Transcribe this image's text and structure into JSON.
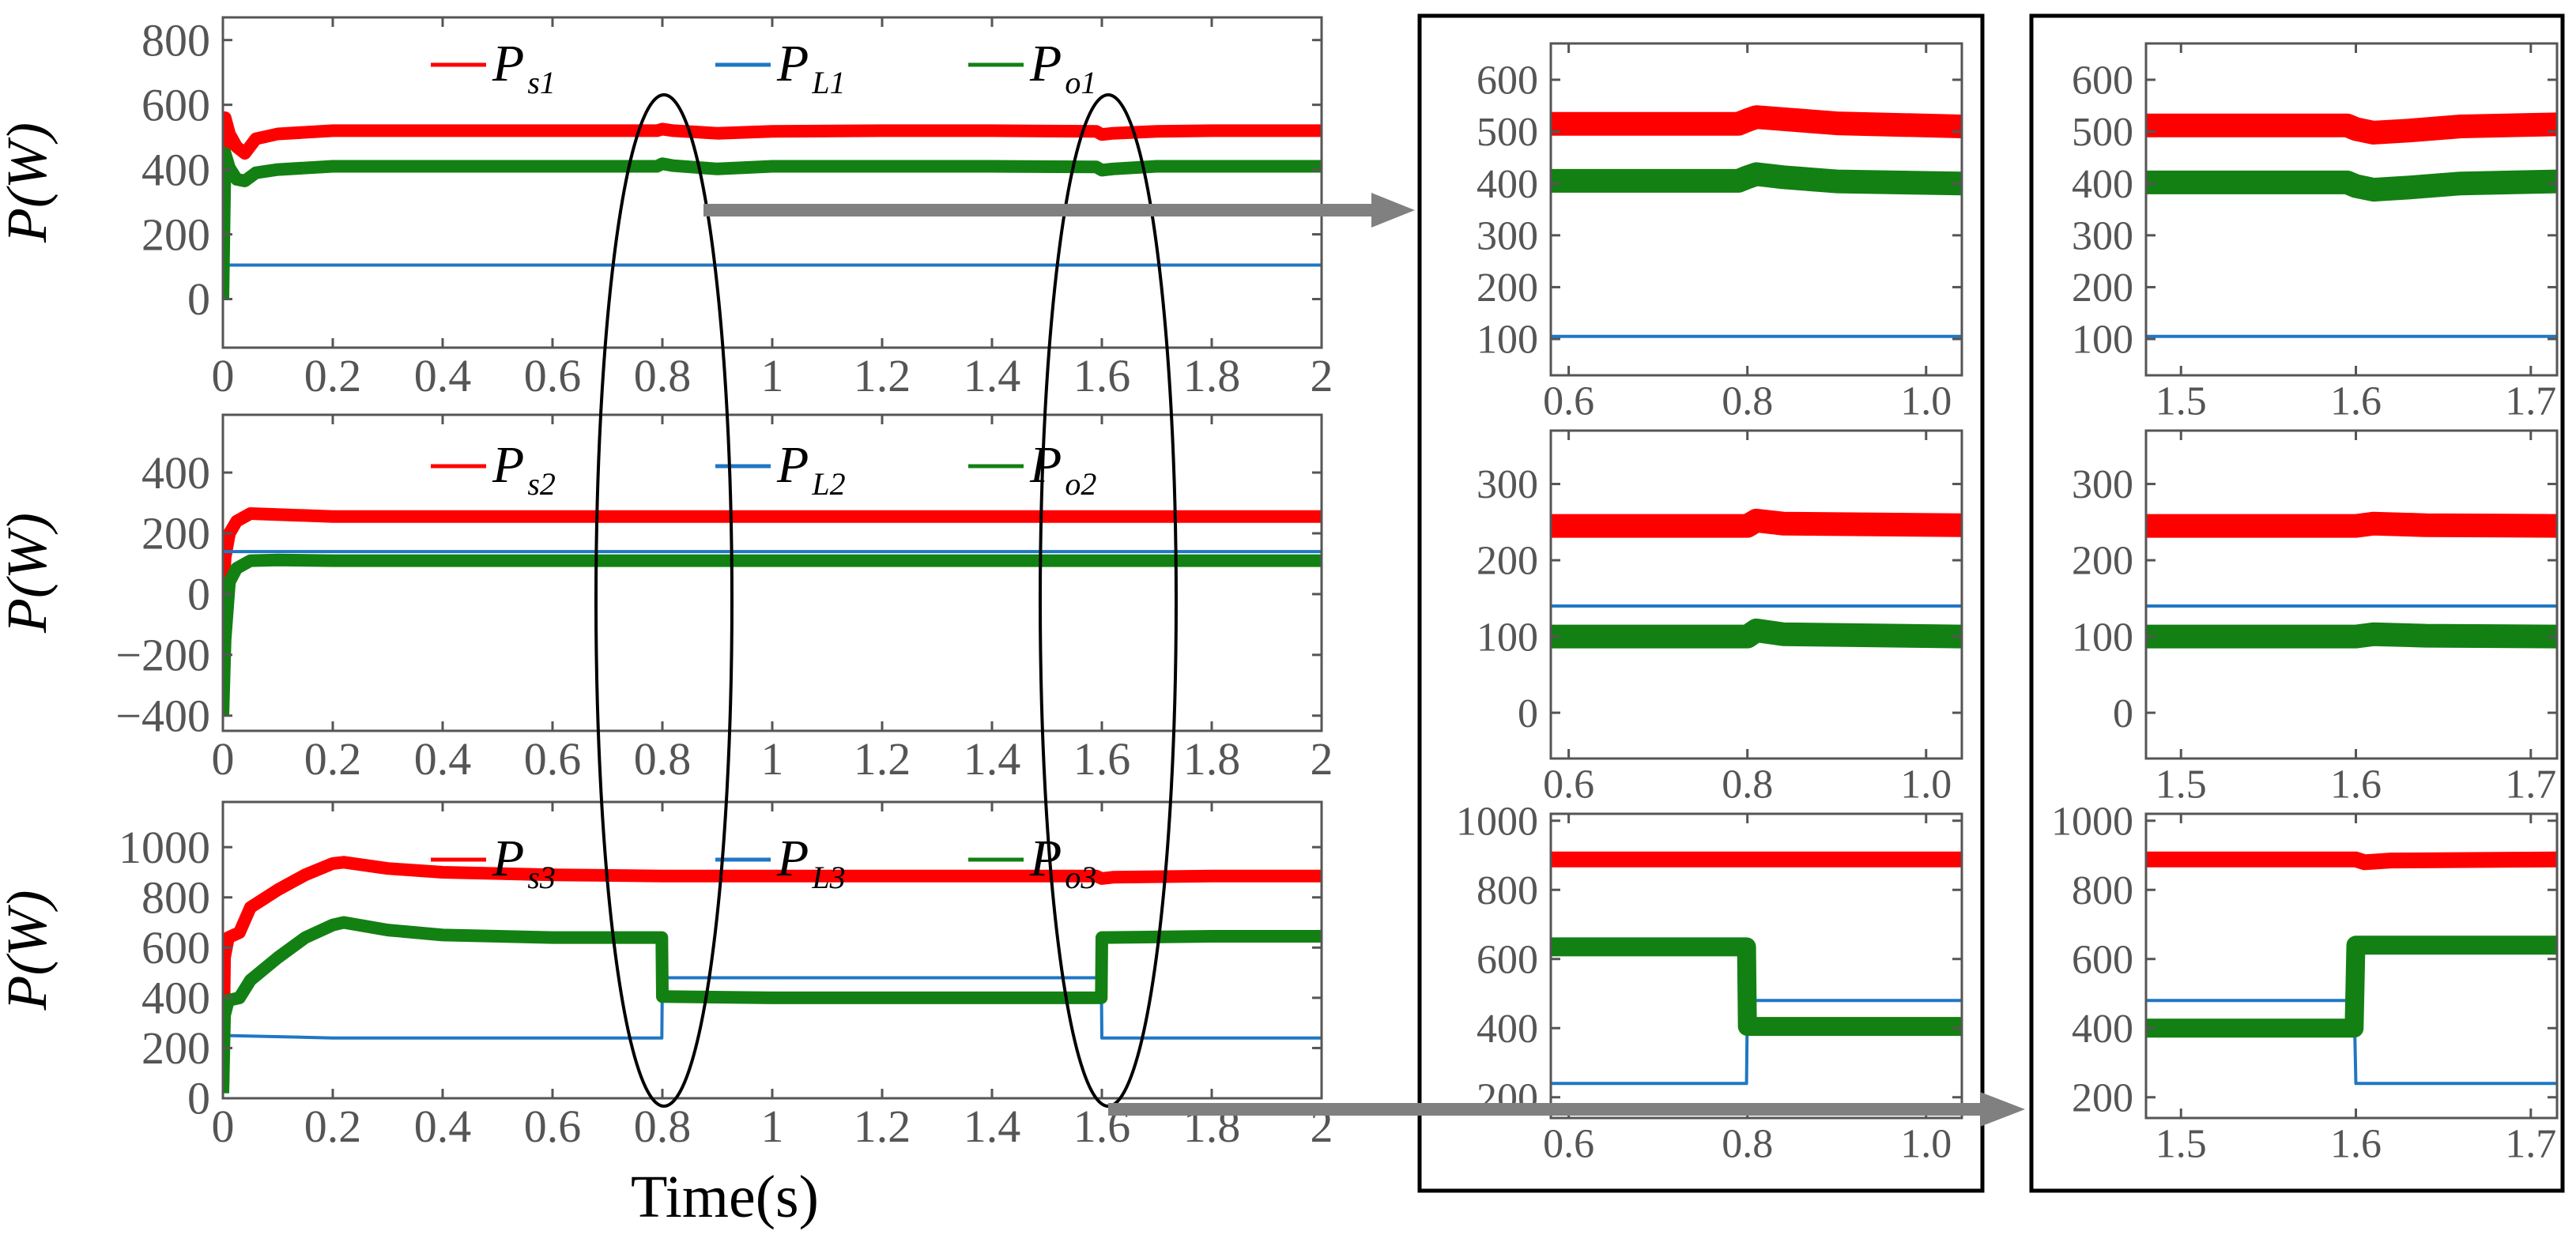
{
  "figure": {
    "xlabel": "Time(s)",
    "ylabel_prefix": "P",
    "ylabel_unit": "(W)",
    "colors": {
      "s": "#ff0000",
      "L": "#1f77c4",
      "o": "#138013",
      "arrow": "#808080",
      "frame": "#000000"
    }
  },
  "chart_data": [
    {
      "id": "main1",
      "type": "line",
      "xlim": [
        0,
        2
      ],
      "ylim": [
        -150,
        870
      ],
      "xticks": [
        0,
        0.2,
        0.4,
        0.6,
        0.8,
        1,
        1.2,
        1.4,
        1.6,
        1.8,
        2
      ],
      "xticklabels": [
        "0",
        "0.2",
        "0.4",
        "0.6",
        "0.8",
        "1",
        "1.2",
        "1.4",
        "1.6",
        "1.8",
        "2"
      ],
      "yticks": [
        0,
        200,
        400,
        600,
        800
      ],
      "yticklabels": [
        "0",
        "200",
        "400",
        "600",
        "800"
      ],
      "ylabel": "P(W)",
      "legend": [
        {
          "key": "s",
          "main": "P",
          "sub": "s1"
        },
        {
          "key": "L",
          "main": "P",
          "sub": "L1"
        },
        {
          "key": "o",
          "main": "P",
          "sub": "o1"
        }
      ],
      "series": [
        {
          "name": "Ps1",
          "key": "s",
          "width": 16,
          "x": [
            0,
            0.004,
            0.012,
            0.025,
            0.04,
            0.06,
            0.1,
            0.2,
            0.4,
            0.6,
            0.79,
            0.8,
            0.82,
            0.9,
            1.0,
            1.2,
            1.4,
            1.59,
            1.6,
            1.62,
            1.7,
            1.8,
            2.0
          ],
          "y": [
            100,
            560,
            510,
            470,
            450,
            495,
            510,
            520,
            520,
            520,
            520,
            525,
            520,
            512,
            518,
            520,
            520,
            518,
            508,
            512,
            518,
            520,
            520
          ]
        },
        {
          "name": "PL1",
          "key": "L",
          "width": 4,
          "x": [
            0,
            0.005,
            2.0
          ],
          "y": [
            100,
            105,
            105
          ]
        },
        {
          "name": "Po1",
          "key": "o",
          "width": 16,
          "x": [
            0,
            0.004,
            0.012,
            0.025,
            0.04,
            0.06,
            0.1,
            0.2,
            0.4,
            0.6,
            0.79,
            0.8,
            0.82,
            0.9,
            1.0,
            1.2,
            1.4,
            1.59,
            1.6,
            1.62,
            1.7,
            1.8,
            2.0
          ],
          "y": [
            0,
            450,
            405,
            370,
            365,
            390,
            400,
            410,
            410,
            410,
            410,
            418,
            412,
            402,
            410,
            410,
            410,
            408,
            398,
            402,
            410,
            410,
            410
          ]
        }
      ]
    },
    {
      "id": "main2",
      "type": "line",
      "xlim": [
        0,
        2
      ],
      "ylim": [
        -450,
        590
      ],
      "xticks": [
        0,
        0.2,
        0.4,
        0.6,
        0.8,
        1,
        1.2,
        1.4,
        1.6,
        1.8,
        2
      ],
      "xticklabels": [
        "0",
        "0.2",
        "0.4",
        "0.6",
        "0.8",
        "1",
        "1.2",
        "1.4",
        "1.6",
        "1.8",
        "2"
      ],
      "yticks": [
        -400,
        -200,
        0,
        200,
        400
      ],
      "yticklabels": [
        "−400",
        "−200",
        "0",
        "200",
        "400"
      ],
      "ylabel": "P(W)",
      "legend": [
        {
          "key": "s",
          "main": "P",
          "sub": "s2"
        },
        {
          "key": "L",
          "main": "P",
          "sub": "L2"
        },
        {
          "key": "o",
          "main": "P",
          "sub": "o2"
        }
      ],
      "series": [
        {
          "name": "Ps2",
          "key": "s",
          "width": 16,
          "x": [
            0,
            0.004,
            0.012,
            0.025,
            0.05,
            0.1,
            0.2,
            0.4,
            0.8,
            1.2,
            1.6,
            2.0
          ],
          "y": [
            -50,
            120,
            200,
            240,
            265,
            262,
            255,
            255,
            255,
            255,
            255,
            255
          ]
        },
        {
          "name": "PL2",
          "key": "L",
          "width": 4,
          "x": [
            0,
            0.005,
            2.0
          ],
          "y": [
            140,
            140,
            140
          ]
        },
        {
          "name": "Po2",
          "key": "o",
          "width": 16,
          "x": [
            0,
            0.004,
            0.012,
            0.025,
            0.05,
            0.1,
            0.2,
            0.4,
            0.8,
            1.2,
            1.6,
            2.0
          ],
          "y": [
            -400,
            -150,
            40,
            85,
            110,
            112,
            110,
            110,
            110,
            110,
            110,
            110
          ]
        }
      ]
    },
    {
      "id": "main3",
      "type": "line",
      "xlim": [
        0,
        2
      ],
      "ylim": [
        0,
        1180
      ],
      "xticks": [
        0,
        0.2,
        0.4,
        0.6,
        0.8,
        1,
        1.2,
        1.4,
        1.6,
        1.8,
        2
      ],
      "xticklabels": [
        "0",
        "0.2",
        "0.4",
        "0.6",
        "0.8",
        "1",
        "1.2",
        "1.4",
        "1.6",
        "1.8",
        "2"
      ],
      "yticks": [
        0,
        200,
        400,
        600,
        800,
        1000
      ],
      "yticklabels": [
        "0",
        "200",
        "400",
        "600",
        "800",
        "1000"
      ],
      "ylabel": "P(W)",
      "legend": [
        {
          "key": "s",
          "main": "P",
          "sub": "s3"
        },
        {
          "key": "L",
          "main": "P",
          "sub": "L3"
        },
        {
          "key": "o",
          "main": "P",
          "sub": "o3"
        }
      ],
      "series": [
        {
          "name": "Ps3",
          "key": "s",
          "width": 16,
          "x": [
            0,
            0.003,
            0.01,
            0.03,
            0.05,
            0.1,
            0.15,
            0.2,
            0.22,
            0.3,
            0.4,
            0.6,
            0.8,
            1.0,
            1.2,
            1.59,
            1.6,
            1.62,
            1.8,
            2.0
          ],
          "y": [
            50,
            560,
            640,
            660,
            760,
            830,
            890,
            935,
            940,
            915,
            900,
            890,
            885,
            885,
            885,
            885,
            875,
            880,
            885,
            885
          ]
        },
        {
          "name": "PL3",
          "key": "L",
          "width": 4,
          "x": [
            0,
            0.005,
            0.2,
            0.4,
            0.799,
            0.8,
            1.599,
            1.6,
            2.0
          ],
          "y": [
            240,
            250,
            240,
            240,
            240,
            480,
            480,
            240,
            240
          ]
        },
        {
          "name": "Po3",
          "key": "o",
          "width": 16,
          "x": [
            0,
            0.003,
            0.01,
            0.03,
            0.05,
            0.1,
            0.15,
            0.2,
            0.22,
            0.3,
            0.4,
            0.6,
            0.799,
            0.8,
            1.0,
            1.2,
            1.599,
            1.6,
            1.8,
            2.0
          ],
          "y": [
            20,
            330,
            390,
            400,
            470,
            560,
            640,
            690,
            700,
            670,
            650,
            640,
            640,
            405,
            400,
            400,
            400,
            640,
            645,
            645
          ]
        }
      ]
    },
    {
      "id": "zoomA1",
      "type": "line",
      "xlim": [
        0.58,
        1.04
      ],
      "ylim": [
        30,
        670
      ],
      "xticks": [
        0.6,
        0.8,
        1.0
      ],
      "xticklabels": [
        "0.6",
        "0.8",
        "1.0"
      ],
      "yticks": [
        100,
        200,
        300,
        400,
        500,
        600
      ],
      "yticklabels": [
        "100",
        "200",
        "300",
        "400",
        "500",
        "600"
      ],
      "series": [
        {
          "name": "Ps1",
          "key": "s",
          "width": 30,
          "x": [
            0.58,
            0.79,
            0.8,
            0.81,
            0.84,
            0.9,
            1.04
          ],
          "y": [
            515,
            515,
            522,
            528,
            524,
            516,
            510
          ]
        },
        {
          "name": "PL1",
          "key": "L",
          "width": 4,
          "x": [
            0.58,
            1.04
          ],
          "y": [
            105,
            105
          ]
        },
        {
          "name": "Po1",
          "key": "o",
          "width": 30,
          "x": [
            0.58,
            0.79,
            0.8,
            0.81,
            0.84,
            0.9,
            1.04
          ],
          "y": [
            405,
            405,
            412,
            418,
            412,
            404,
            400
          ]
        }
      ]
    },
    {
      "id": "zoomB1",
      "type": "line",
      "xlim": [
        1.48,
        1.715
      ],
      "ylim": [
        30,
        670
      ],
      "xticks": [
        1.5,
        1.6,
        1.7
      ],
      "xticklabels": [
        "1.5",
        "1.6",
        "1.7"
      ],
      "yticks": [
        100,
        200,
        300,
        400,
        500,
        600
      ],
      "yticklabels": [
        "100",
        "200",
        "300",
        "400",
        "500",
        "600"
      ],
      "series": [
        {
          "name": "Ps1",
          "key": "s",
          "width": 30,
          "x": [
            1.48,
            1.595,
            1.6,
            1.61,
            1.63,
            1.66,
            1.715
          ],
          "y": [
            512,
            512,
            505,
            498,
            502,
            510,
            514
          ]
        },
        {
          "name": "PL1",
          "key": "L",
          "width": 4,
          "x": [
            1.48,
            1.715
          ],
          "y": [
            105,
            105
          ]
        },
        {
          "name": "Po1",
          "key": "o",
          "width": 30,
          "x": [
            1.48,
            1.595,
            1.6,
            1.61,
            1.63,
            1.66,
            1.715
          ],
          "y": [
            402,
            402,
            395,
            388,
            392,
            400,
            404
          ]
        }
      ]
    },
    {
      "id": "zoomA2",
      "type": "line",
      "xlim": [
        0.58,
        1.04
      ],
      "ylim": [
        -60,
        370
      ],
      "xticks": [
        0.6,
        0.8,
        1.0
      ],
      "xticklabels": [
        "0.6",
        "0.8",
        "1.0"
      ],
      "yticks": [
        0,
        100,
        200,
        300
      ],
      "yticklabels": [
        "0",
        "100",
        "200",
        "300"
      ],
      "series": [
        {
          "name": "Ps2",
          "key": "s",
          "width": 30,
          "x": [
            0.58,
            0.8,
            0.81,
            0.84,
            1.04
          ],
          "y": [
            245,
            245,
            252,
            248,
            246
          ]
        },
        {
          "name": "PL2",
          "key": "L",
          "width": 4,
          "x": [
            0.58,
            1.04
          ],
          "y": [
            140,
            140
          ]
        },
        {
          "name": "Po2",
          "key": "o",
          "width": 30,
          "x": [
            0.58,
            0.8,
            0.81,
            0.84,
            1.04
          ],
          "y": [
            100,
            100,
            108,
            103,
            100
          ]
        }
      ]
    },
    {
      "id": "zoomB2",
      "type": "line",
      "xlim": [
        1.48,
        1.715
      ],
      "ylim": [
        -60,
        370
      ],
      "xticks": [
        1.5,
        1.6,
        1.7
      ],
      "xticklabels": [
        "1.5",
        "1.6",
        "1.7"
      ],
      "yticks": [
        0,
        100,
        200,
        300
      ],
      "yticklabels": [
        "0",
        "100",
        "200",
        "300"
      ],
      "series": [
        {
          "name": "Ps2",
          "key": "s",
          "width": 30,
          "x": [
            1.48,
            1.6,
            1.61,
            1.64,
            1.715
          ],
          "y": [
            245,
            245,
            248,
            246,
            245
          ]
        },
        {
          "name": "PL2",
          "key": "L",
          "width": 4,
          "x": [
            1.48,
            1.715
          ],
          "y": [
            140,
            140
          ]
        },
        {
          "name": "Po2",
          "key": "o",
          "width": 30,
          "x": [
            1.48,
            1.6,
            1.61,
            1.64,
            1.715
          ],
          "y": [
            100,
            100,
            103,
            101,
            100
          ]
        }
      ]
    },
    {
      "id": "zoomA3",
      "type": "line",
      "xlim": [
        0.58,
        1.04
      ],
      "ylim": [
        140,
        1020
      ],
      "xticks": [
        0.6,
        0.8,
        1.0
      ],
      "xticklabels": [
        "0.6",
        "0.8",
        "1.0"
      ],
      "yticks": [
        200,
        400,
        600,
        800,
        1000
      ],
      "yticklabels": [
        "200",
        "400",
        "600",
        "800",
        "1000"
      ],
      "series": [
        {
          "name": "Ps3",
          "key": "s",
          "width": 20,
          "x": [
            0.58,
            1.04
          ],
          "y": [
            888,
            888
          ]
        },
        {
          "name": "PL3",
          "key": "L",
          "width": 4,
          "x": [
            0.58,
            0.799,
            0.8,
            1.04
          ],
          "y": [
            240,
            240,
            480,
            480
          ]
        },
        {
          "name": "Po3",
          "key": "o",
          "width": 24,
          "x": [
            0.58,
            0.799,
            0.8,
            1.04
          ],
          "y": [
            635,
            635,
            405,
            405
          ]
        }
      ]
    },
    {
      "id": "zoomB3",
      "type": "line",
      "xlim": [
        1.48,
        1.715
      ],
      "ylim": [
        140,
        1020
      ],
      "xticks": [
        1.5,
        1.6,
        1.7
      ],
      "xticklabels": [
        "1.5",
        "1.6",
        "1.7"
      ],
      "yticks": [
        200,
        400,
        600,
        800,
        1000
      ],
      "yticklabels": [
        "200",
        "400",
        "600",
        "800",
        "1000"
      ],
      "series": [
        {
          "name": "Ps3",
          "key": "s",
          "width": 20,
          "x": [
            1.48,
            1.6,
            1.605,
            1.62,
            1.715
          ],
          "y": [
            888,
            888,
            880,
            885,
            888
          ]
        },
        {
          "name": "PL3",
          "key": "L",
          "width": 4,
          "x": [
            1.48,
            1.599,
            1.6,
            1.715
          ],
          "y": [
            480,
            480,
            240,
            240
          ]
        },
        {
          "name": "Po3",
          "key": "o",
          "width": 24,
          "x": [
            1.48,
            1.599,
            1.6,
            1.715
          ],
          "y": [
            400,
            400,
            640,
            640
          ]
        }
      ]
    }
  ]
}
